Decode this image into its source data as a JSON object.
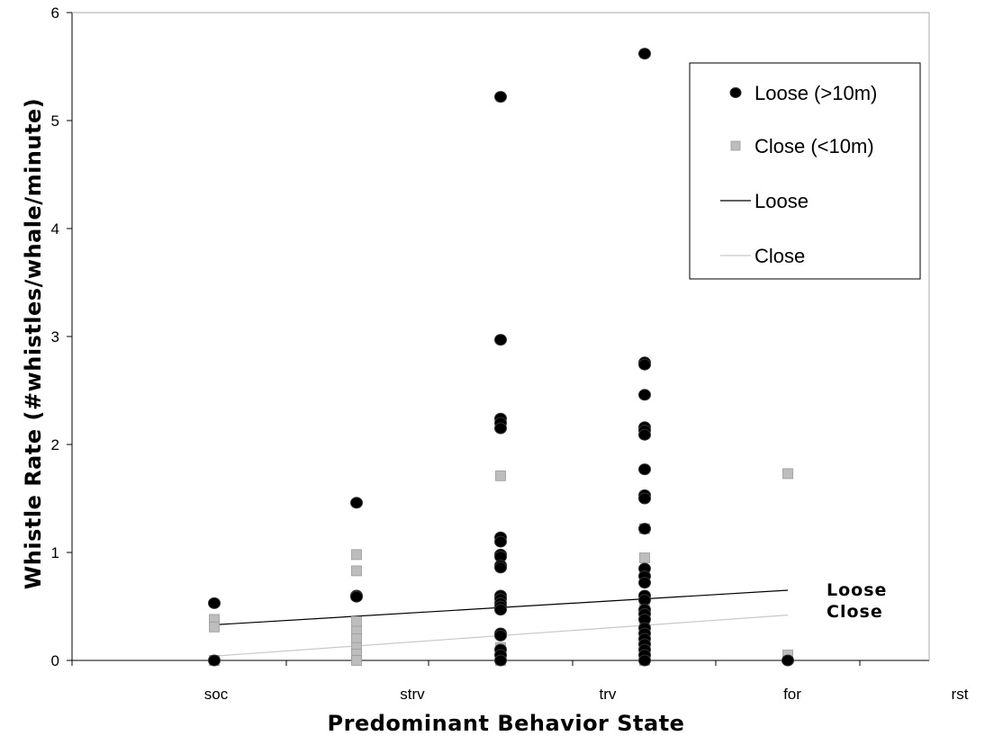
{
  "chart_data": {
    "type": "scatter",
    "title": "",
    "xlabel": "Predominant  Behavior  State",
    "ylabel": "Whistle  Rate  (#whistles/whale/minute)",
    "categories": [
      "soc",
      "strv",
      "trv",
      "for",
      "rst"
    ],
    "ylim": [
      0,
      6
    ],
    "yticks": [
      "0",
      "1",
      "2",
      "3",
      "4",
      "5",
      "6"
    ],
    "grid": false,
    "legend_position": "top-right",
    "series": [
      {
        "name": "Loose (>10m)",
        "marker": "circle",
        "color": "#000000",
        "points": [
          {
            "x": 1,
            "y": 0.53
          },
          {
            "x": 1,
            "y": 0.0
          },
          {
            "x": 2,
            "y": 1.46
          },
          {
            "x": 2,
            "y": 0.6
          },
          {
            "x": 2,
            "y": 0.59
          },
          {
            "x": 3,
            "y": 5.22
          },
          {
            "x": 3,
            "y": 2.97
          },
          {
            "x": 3,
            "y": 2.24
          },
          {
            "x": 3,
            "y": 2.2
          },
          {
            "x": 3,
            "y": 2.15
          },
          {
            "x": 3,
            "y": 1.14
          },
          {
            "x": 3,
            "y": 1.1
          },
          {
            "x": 3,
            "y": 0.98
          },
          {
            "x": 3,
            "y": 0.96
          },
          {
            "x": 3,
            "y": 0.88
          },
          {
            "x": 3,
            "y": 0.86
          },
          {
            "x": 3,
            "y": 0.6
          },
          {
            "x": 3,
            "y": 0.57
          },
          {
            "x": 3,
            "y": 0.53
          },
          {
            "x": 3,
            "y": 0.5
          },
          {
            "x": 3,
            "y": 0.47
          },
          {
            "x": 3,
            "y": 0.25
          },
          {
            "x": 3,
            "y": 0.23
          },
          {
            "x": 3,
            "y": 0.1
          },
          {
            "x": 3,
            "y": 0.05
          },
          {
            "x": 3,
            "y": 0.0
          },
          {
            "x": 4,
            "y": 5.62
          },
          {
            "x": 4,
            "y": 2.76
          },
          {
            "x": 4,
            "y": 2.74
          },
          {
            "x": 4,
            "y": 2.46
          },
          {
            "x": 4,
            "y": 2.16
          },
          {
            "x": 4,
            "y": 2.13
          },
          {
            "x": 4,
            "y": 2.09
          },
          {
            "x": 4,
            "y": 1.77
          },
          {
            "x": 4,
            "y": 1.53
          },
          {
            "x": 4,
            "y": 1.5
          },
          {
            "x": 4,
            "y": 1.22
          },
          {
            "x": 4,
            "y": 0.85
          },
          {
            "x": 4,
            "y": 0.78
          },
          {
            "x": 4,
            "y": 0.72
          },
          {
            "x": 4,
            "y": 0.6
          },
          {
            "x": 4,
            "y": 0.56
          },
          {
            "x": 4,
            "y": 0.47
          },
          {
            "x": 4,
            "y": 0.43
          },
          {
            "x": 4,
            "y": 0.38
          },
          {
            "x": 4,
            "y": 0.3
          },
          {
            "x": 4,
            "y": 0.25
          },
          {
            "x": 4,
            "y": 0.2
          },
          {
            "x": 4,
            "y": 0.15
          },
          {
            "x": 4,
            "y": 0.1
          },
          {
            "x": 4,
            "y": 0.05
          },
          {
            "x": 4,
            "y": 0.0
          },
          {
            "x": 5,
            "y": 0.0
          }
        ]
      },
      {
        "name": "Close (<10m)",
        "marker": "square",
        "color": "#bdbdbd",
        "points": [
          {
            "x": 1,
            "y": 0.38
          },
          {
            "x": 1,
            "y": 0.31
          },
          {
            "x": 1,
            "y": 0.0
          },
          {
            "x": 2,
            "y": 0.98
          },
          {
            "x": 2,
            "y": 0.83
          },
          {
            "x": 2,
            "y": 0.36
          },
          {
            "x": 2,
            "y": 0.27
          },
          {
            "x": 2,
            "y": 0.2
          },
          {
            "x": 2,
            "y": 0.12
          },
          {
            "x": 2,
            "y": 0.06
          },
          {
            "x": 2,
            "y": 0.0
          },
          {
            "x": 3,
            "y": 1.71
          },
          {
            "x": 3,
            "y": 0.12
          },
          {
            "x": 3,
            "y": 0.08
          },
          {
            "x": 3,
            "y": 0.04
          },
          {
            "x": 3,
            "y": 0.0
          },
          {
            "x": 4,
            "y": 1.22
          },
          {
            "x": 4,
            "y": 0.95
          },
          {
            "x": 4,
            "y": 0.58
          },
          {
            "x": 4,
            "y": 0.5
          },
          {
            "x": 4,
            "y": 0.42
          },
          {
            "x": 4,
            "y": 0.3
          },
          {
            "x": 4,
            "y": 0.18
          },
          {
            "x": 4,
            "y": 0.1
          },
          {
            "x": 4,
            "y": 0.04
          },
          {
            "x": 4,
            "y": 0.0
          },
          {
            "x": 5,
            "y": 1.73
          },
          {
            "x": 5,
            "y": 0.05
          }
        ]
      }
    ],
    "trendlines": [
      {
        "name": "Loose",
        "color": "#000000",
        "x_range": [
          1,
          5
        ],
        "y_start": 0.33,
        "y_end": 0.65
      },
      {
        "name": "Close",
        "color": "#c8c8c8",
        "x_range": [
          1,
          5
        ],
        "y_start": 0.04,
        "y_end": 0.42
      }
    ],
    "annotations": [
      {
        "text": "Loose",
        "near_series": "Loose"
      },
      {
        "text": "Close",
        "near_series": "Close"
      }
    ],
    "legend": [
      {
        "label": "Loose (>10m)",
        "symbol": "circle",
        "color": "#000000"
      },
      {
        "label": "Close (<10m)",
        "symbol": "square",
        "color": "#bdbdbd"
      },
      {
        "label": "Loose",
        "symbol": "line",
        "color": "#000000"
      },
      {
        "label": "Close",
        "symbol": "line",
        "color": "#c8c8c8"
      }
    ]
  }
}
